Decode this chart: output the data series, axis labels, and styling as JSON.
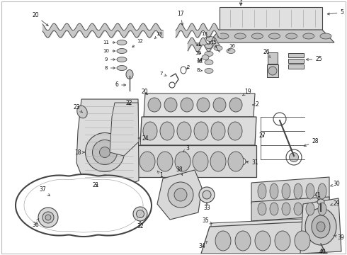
{
  "bg_color": "#ffffff",
  "fig_width": 4.9,
  "fig_height": 3.6,
  "dpi": 100,
  "lc": "#444444",
  "fc_light": "#d8d8d8",
  "fc_mid": "#c8c8c8",
  "fc_dark": "#b8b8b8"
}
